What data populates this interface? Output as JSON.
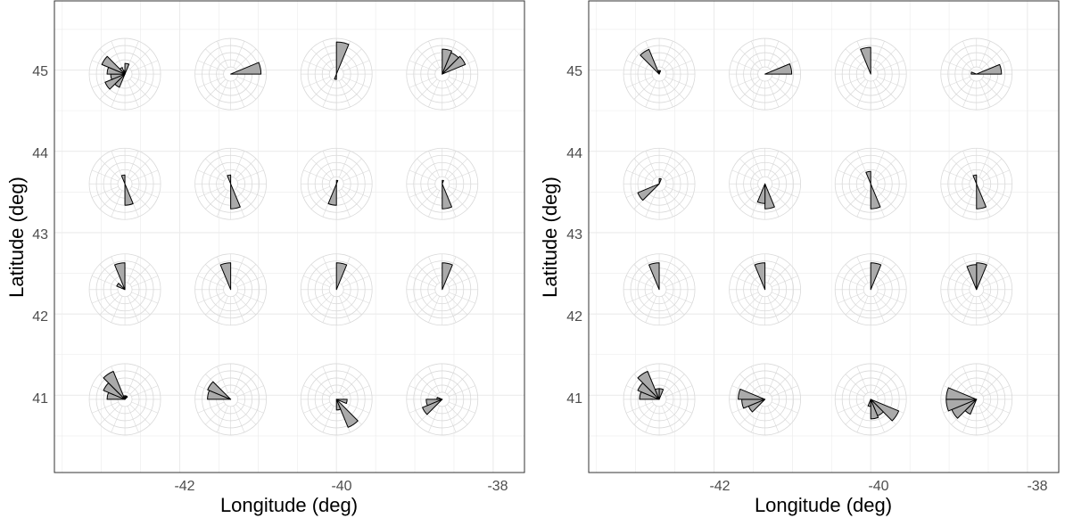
{
  "chart_data": [
    {
      "type": "rose-map",
      "xlabel": "Longitude (deg)",
      "ylabel": "Latitude (deg)",
      "xlim": [
        -43.6,
        -37.6
      ],
      "ylim": [
        40.05,
        45.85
      ],
      "x_ticks": [
        -42,
        -40,
        -38
      ],
      "x_tick_labels": [
        "-42",
        "-40",
        "-38"
      ],
      "y_ticks": [
        41,
        42,
        43,
        44,
        45
      ],
      "y_tick_labels": [
        "41",
        "42",
        "43",
        "44",
        "45"
      ],
      "grid": true,
      "sectors": 16,
      "roses": [
        {
          "lon": -42.7,
          "lat": 44.95,
          "radii": [
            0.3,
            0,
            0,
            0,
            0,
            0,
            0,
            0,
            0,
            0.4,
            0.6,
            0.4,
            0.5,
            0.7,
            0.2,
            0.1
          ]
        },
        {
          "lon": -41.35,
          "lat": 44.95,
          "radii": [
            0,
            0,
            0,
            0.85,
            0,
            0,
            0,
            0,
            0,
            0,
            0,
            0,
            0,
            0,
            0,
            0
          ]
        },
        {
          "lon": -40.0,
          "lat": 44.95,
          "radii": [
            0.9,
            0,
            0,
            0,
            0,
            0,
            0,
            0,
            0.15,
            0,
            0,
            0,
            0,
            0,
            0,
            0
          ]
        },
        {
          "lon": -38.65,
          "lat": 44.95,
          "radii": [
            0.7,
            0.65,
            0.7,
            0,
            0,
            0,
            0,
            0,
            0,
            0,
            0,
            0,
            0,
            0,
            0,
            0
          ]
        },
        {
          "lon": -42.7,
          "lat": 43.6,
          "radii": [
            0,
            0,
            0,
            0,
            0,
            0,
            0,
            0.6,
            0,
            0,
            0,
            0,
            0,
            0,
            0,
            0.25
          ]
        },
        {
          "lon": -41.35,
          "lat": 43.6,
          "radii": [
            0,
            0,
            0,
            0,
            0,
            0,
            0,
            0.7,
            0,
            0,
            0,
            0,
            0,
            0,
            0,
            0.25
          ]
        },
        {
          "lon": -40.0,
          "lat": 43.6,
          "radii": [
            0.1,
            0,
            0,
            0,
            0,
            0,
            0,
            0,
            0.6,
            0,
            0,
            0,
            0,
            0,
            0,
            0
          ]
        },
        {
          "lon": -38.65,
          "lat": 43.6,
          "radii": [
            0.1,
            0,
            0,
            0,
            0,
            0,
            0,
            0.7,
            0,
            0,
            0,
            0,
            0,
            0,
            0,
            0
          ]
        },
        {
          "lon": -42.7,
          "lat": 42.3,
          "radii": [
            0,
            0,
            0,
            0,
            0,
            0,
            0,
            0,
            0,
            0,
            0,
            0,
            0,
            0.25,
            0,
            0.75
          ]
        },
        {
          "lon": -41.35,
          "lat": 42.3,
          "radii": [
            0,
            0,
            0,
            0,
            0,
            0,
            0,
            0,
            0,
            0,
            0,
            0,
            0,
            0,
            0,
            0.75
          ]
        },
        {
          "lon": -40.0,
          "lat": 42.3,
          "radii": [
            0.75,
            0,
            0,
            0,
            0,
            0,
            0,
            0,
            0,
            0,
            0,
            0,
            0,
            0,
            0,
            0
          ]
        },
        {
          "lon": -38.65,
          "lat": 42.3,
          "radii": [
            0.75,
            0,
            0,
            0,
            0,
            0,
            0,
            0,
            0,
            0,
            0,
            0,
            0,
            0,
            0,
            0
          ]
        },
        {
          "lon": -42.7,
          "lat": 40.95,
          "radii": [
            0.1,
            0.1,
            0,
            0,
            0,
            0,
            0,
            0,
            0,
            0,
            0,
            0,
            0.5,
            0.65,
            0.85,
            0.1
          ]
        },
        {
          "lon": -41.35,
          "lat": 40.95,
          "radii": [
            0,
            0,
            0,
            0,
            0,
            0,
            0,
            0,
            0,
            0,
            0,
            0,
            0.65,
            0.7,
            0,
            0
          ]
        },
        {
          "lon": -40.0,
          "lat": 40.95,
          "radii": [
            0,
            0,
            0,
            0,
            0.3,
            0,
            0.85,
            0.3,
            0,
            0,
            0,
            0,
            0,
            0,
            0,
            0
          ]
        },
        {
          "lon": -38.65,
          "lat": 40.95,
          "radii": [
            0,
            0,
            0,
            0,
            0,
            0,
            0,
            0,
            0,
            0,
            0.6,
            0.45,
            0.15,
            0,
            0,
            0
          ]
        }
      ]
    },
    {
      "type": "rose-map",
      "xlabel": "Longitude (deg)",
      "ylabel": "Latitude (deg)",
      "xlim": [
        -43.6,
        -37.6
      ],
      "ylim": [
        40.05,
        45.85
      ],
      "x_ticks": [
        -42,
        -40,
        -38
      ],
      "x_tick_labels": [
        "-42",
        "-40",
        "-38"
      ],
      "y_ticks": [
        41,
        42,
        43,
        44,
        45
      ],
      "y_tick_labels": [
        "41",
        "42",
        "43",
        "44",
        "45"
      ],
      "grid": true,
      "sectors": 16,
      "roses": [
        {
          "lon": -42.7,
          "lat": 44.95,
          "radii": [
            0.1,
            0,
            0,
            0,
            0,
            0,
            0,
            0,
            0,
            0,
            0,
            0,
            0,
            0,
            0.75,
            0.1
          ]
        },
        {
          "lon": -41.35,
          "lat": 44.95,
          "radii": [
            0,
            0,
            0,
            0.75,
            0,
            0,
            0,
            0,
            0,
            0,
            0,
            0,
            0,
            0,
            0,
            0
          ]
        },
        {
          "lon": -40.0,
          "lat": 44.95,
          "radii": [
            0,
            0,
            0,
            0,
            0,
            0,
            0,
            0,
            0,
            0,
            0,
            0,
            0,
            0,
            0,
            0.75
          ]
        },
        {
          "lon": -38.65,
          "lat": 44.95,
          "radii": [
            0,
            0,
            0,
            0.7,
            0,
            0,
            0,
            0,
            0,
            0,
            0,
            0,
            0.15,
            0,
            0,
            0
          ]
        },
        {
          "lon": -42.7,
          "lat": 43.6,
          "radii": [
            0.15,
            0,
            0,
            0,
            0,
            0,
            0,
            0,
            0,
            0,
            0.65,
            0,
            0,
            0,
            0,
            0
          ]
        },
        {
          "lon": -41.35,
          "lat": 43.6,
          "radii": [
            0,
            0,
            0,
            0,
            0,
            0,
            0,
            0.7,
            0.55,
            0,
            0,
            0,
            0,
            0,
            0,
            0
          ]
        },
        {
          "lon": -40.0,
          "lat": 43.6,
          "radii": [
            0,
            0,
            0,
            0,
            0,
            0,
            0,
            0.7,
            0,
            0,
            0,
            0,
            0,
            0,
            0,
            0.35
          ]
        },
        {
          "lon": -38.65,
          "lat": 43.6,
          "radii": [
            0,
            0,
            0,
            0,
            0,
            0,
            0,
            0.7,
            0,
            0,
            0,
            0,
            0,
            0,
            0,
            0.25
          ]
        },
        {
          "lon": -42.7,
          "lat": 42.3,
          "radii": [
            0,
            0,
            0,
            0,
            0,
            0,
            0,
            0,
            0,
            0,
            0,
            0,
            0,
            0,
            0,
            0.75
          ]
        },
        {
          "lon": -41.35,
          "lat": 42.3,
          "radii": [
            0,
            0,
            0,
            0,
            0,
            0,
            0,
            0,
            0,
            0,
            0,
            0,
            0,
            0,
            0,
            0.75
          ]
        },
        {
          "lon": -40.0,
          "lat": 42.3,
          "radii": [
            0.75,
            0,
            0,
            0,
            0,
            0,
            0,
            0,
            0,
            0,
            0,
            0,
            0,
            0,
            0,
            0
          ]
        },
        {
          "lon": -38.65,
          "lat": 42.3,
          "radii": [
            0.75,
            0,
            0,
            0,
            0,
            0,
            0,
            0,
            0,
            0,
            0,
            0,
            0,
            0,
            0,
            0.7
          ]
        },
        {
          "lon": -42.7,
          "lat": 40.95,
          "radii": [
            0.3,
            0,
            0,
            0,
            0,
            0,
            0,
            0,
            0,
            0,
            0,
            0,
            0.55,
            0.65,
            0.85,
            0.3
          ]
        },
        {
          "lon": -41.35,
          "lat": 40.95,
          "radii": [
            0,
            0,
            0,
            0,
            0,
            0,
            0,
            0,
            0,
            0,
            0.5,
            0.65,
            0.75,
            0,
            0,
            0
          ]
        },
        {
          "lon": -40.0,
          "lat": 40.95,
          "radii": [
            0,
            0,
            0,
            0,
            0,
            0.85,
            0.5,
            0.55,
            0.2,
            0,
            0,
            0,
            0,
            0,
            0,
            0
          ]
        },
        {
          "lon": -38.65,
          "lat": 40.95,
          "radii": [
            0,
            0,
            0,
            0,
            0,
            0,
            0,
            0,
            0,
            0.45,
            0.75,
            0.85,
            0.85,
            0,
            0,
            0
          ]
        }
      ]
    }
  ],
  "style": {
    "bar_fill": "#aaaaaa",
    "bar_stroke": "#000000",
    "ring_color": "#d9d9d9",
    "grid_color": "#ebebeb",
    "panel_border": "#333333",
    "background": "#ffffff"
  }
}
